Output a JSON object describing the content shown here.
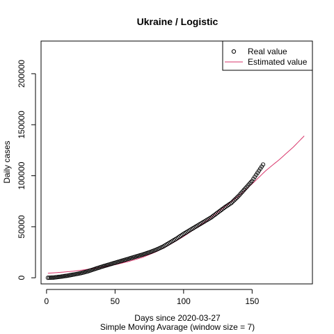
{
  "chart_data": {
    "type": "line",
    "title": "Ukraine / Logistic",
    "xlabel": "Days since 2020-03-27",
    "subtitle": "Simple Moving Avarage (window size = 7)",
    "ylabel": "Daily cases",
    "xlim": [
      -4,
      194
    ],
    "ylim": [
      -6000,
      232000
    ],
    "x_ticks": [
      0,
      50,
      100,
      150
    ],
    "y_ticks": [
      0,
      50000,
      100000,
      150000,
      200000
    ],
    "grid": false,
    "legend_position": "top-right",
    "series": [
      {
        "name": "Real value",
        "style": "points",
        "color": "#000000",
        "x_start": 1,
        "x_end": 158,
        "anchors": [
          [
            1,
            0
          ],
          [
            5,
            200
          ],
          [
            10,
            1000
          ],
          [
            15,
            2000
          ],
          [
            20,
            3200
          ],
          [
            25,
            4500
          ],
          [
            30,
            6300
          ],
          [
            35,
            8500
          ],
          [
            40,
            10700
          ],
          [
            45,
            12700
          ],
          [
            50,
            14700
          ],
          [
            55,
            16700
          ],
          [
            60,
            18700
          ],
          [
            65,
            20700
          ],
          [
            70,
            22700
          ],
          [
            75,
            24900
          ],
          [
            80,
            27500
          ],
          [
            85,
            30500
          ],
          [
            90,
            34500
          ],
          [
            95,
            38500
          ],
          [
            100,
            43000
          ],
          [
            105,
            47000
          ],
          [
            110,
            51000
          ],
          [
            115,
            55000
          ],
          [
            120,
            59000
          ],
          [
            125,
            64000
          ],
          [
            130,
            69000
          ],
          [
            135,
            73500
          ],
          [
            140,
            80000
          ],
          [
            145,
            87500
          ],
          [
            150,
            95000
          ],
          [
            155,
            105000
          ],
          [
            158,
            111000
          ]
        ]
      },
      {
        "name": "Estimated value",
        "style": "line",
        "color": "#d9366b",
        "anchors": [
          [
            1,
            4500
          ],
          [
            10,
            5300
          ],
          [
            20,
            6500
          ],
          [
            30,
            8300
          ],
          [
            40,
            10300
          ],
          [
            50,
            12800
          ],
          [
            60,
            16000
          ],
          [
            70,
            20000
          ],
          [
            80,
            25500
          ],
          [
            90,
            32500
          ],
          [
            100,
            40500
          ],
          [
            110,
            49500
          ],
          [
            120,
            59000
          ],
          [
            130,
            69500
          ],
          [
            140,
            80000
          ],
          [
            150,
            92000
          ],
          [
            160,
            105000
          ],
          [
            170,
            116000
          ],
          [
            180,
            128000
          ],
          [
            188,
            139000
          ]
        ]
      }
    ]
  }
}
